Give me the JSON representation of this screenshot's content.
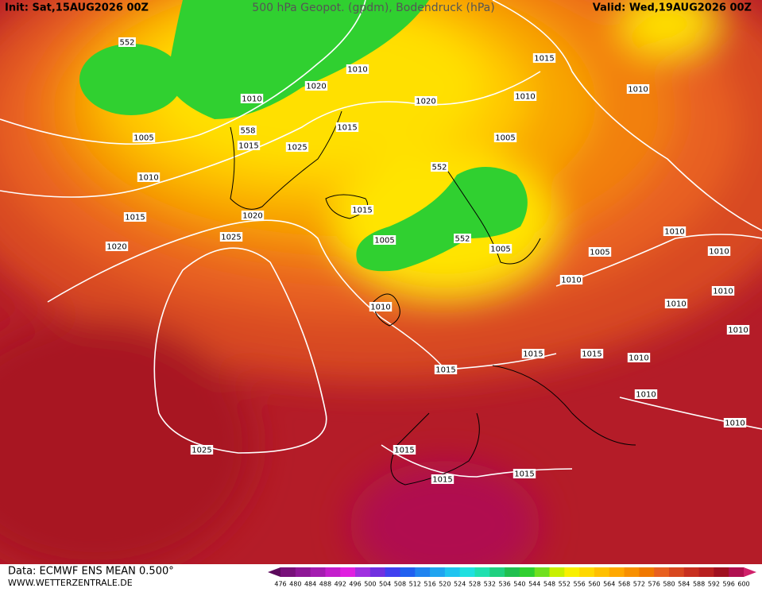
{
  "header": {
    "init": "Init: Sat,15AUG2026 00Z",
    "title": "500 hPa Geopot. (gpdm), Bodendruck (hPa)",
    "valid": "Valid: Wed,19AUG2026 00Z"
  },
  "footer": {
    "data": "Data: ECMWF ENS MEAN 0.500°",
    "site": "WWW.WETTERZENTRALE.DE"
  },
  "colorbar": {
    "labels": [
      476,
      480,
      484,
      488,
      492,
      496,
      500,
      504,
      508,
      512,
      516,
      520,
      524,
      528,
      532,
      536,
      540,
      544,
      548,
      552,
      556,
      560,
      564,
      568,
      572,
      576,
      580,
      584,
      588,
      592,
      596,
      600
    ],
    "colors": [
      "#5c0a5c",
      "#78107a",
      "#8e1796",
      "#a41cb0",
      "#c41ecc",
      "#e020e0",
      "#a030e0",
      "#7030e0",
      "#4040f0",
      "#2060f0",
      "#2084f0",
      "#20a4f0",
      "#20c4f0",
      "#20e0e0",
      "#20e0b0",
      "#20d080",
      "#20c050",
      "#30d030",
      "#70e020",
      "#c8f000",
      "#f8f000",
      "#ffd800",
      "#ffc000",
      "#ffa800",
      "#f89000",
      "#f07800",
      "#e86020",
      "#d84820",
      "#c83020",
      "#b82020",
      "#a01020",
      "#b01050",
      "#d0206a"
    ]
  },
  "isobar_labels": [
    "552",
    "1010",
    "1020",
    "1010",
    "558",
    "1015",
    "1005",
    "1025",
    "1015",
    "1010",
    "1015",
    "1020",
    "1020",
    "1025",
    "1015",
    "1010",
    "1010",
    "1020",
    "1005",
    "552",
    "1015",
    "1005",
    "552",
    "1005",
    "1010",
    "1010",
    "1005",
    "1010",
    "1010",
    "1010",
    "1010",
    "1010",
    "1015",
    "1015",
    "1010",
    "1015",
    "1010",
    "1010",
    "1025",
    "1015",
    "1015",
    "1015"
  ]
}
